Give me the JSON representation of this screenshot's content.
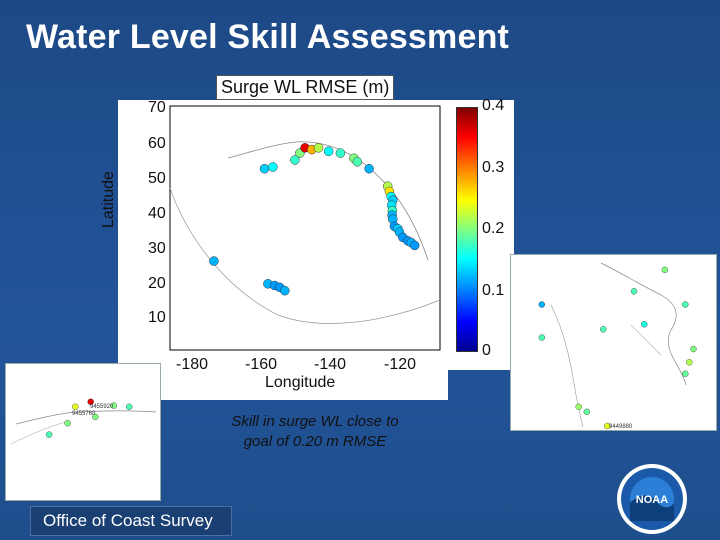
{
  "slide": {
    "title": "Water Level Skill Assessment",
    "caption_line1": "Skill in surge WL close to",
    "caption_line2": "goal of 0.20 m RMSE",
    "footer": "Office of Coast Survey",
    "logo_text": "NOAA"
  },
  "chart_data": [
    {
      "type": "scatter",
      "title": "Surge WL RMSE (m)",
      "xlabel": "Longitude",
      "ylabel": "Latitude",
      "xlim": [
        -190,
        -110
      ],
      "ylim": [
        3,
        73
      ],
      "xticks": [
        -180,
        -160,
        -140,
        -120
      ],
      "yticks": [
        10,
        20,
        30,
        40,
        50,
        60,
        70
      ],
      "colorbar": {
        "range": [
          0,
          0.4
        ],
        "ticks": [
          "0",
          "0.1",
          "0.2",
          "0.3",
          "0.4"
        ],
        "colormap": "jet"
      },
      "grid": false,
      "points": [
        {
          "lon": -177,
          "lat": 28.5,
          "v": 0.12
        },
        {
          "lon": -161,
          "lat": 22,
          "v": 0.12
        },
        {
          "lon": -159,
          "lat": 21.5,
          "v": 0.11
        },
        {
          "lon": -157.5,
          "lat": 21,
          "v": 0.11
        },
        {
          "lon": -156,
          "lat": 20,
          "v": 0.12
        },
        {
          "lon": -162,
          "lat": 55,
          "v": 0.13
        },
        {
          "lon": -159.5,
          "lat": 55.5,
          "v": 0.15
        },
        {
          "lon": -153,
          "lat": 57.5,
          "v": 0.17
        },
        {
          "lon": -151.5,
          "lat": 59.5,
          "v": 0.2
        },
        {
          "lon": -150,
          "lat": 61,
          "v": 0.36
        },
        {
          "lon": -148,
          "lat": 60.5,
          "v": 0.28
        },
        {
          "lon": -146,
          "lat": 61,
          "v": 0.22
        },
        {
          "lon": -143,
          "lat": 60,
          "v": 0.15
        },
        {
          "lon": -139.5,
          "lat": 59.5,
          "v": 0.17
        },
        {
          "lon": -135.5,
          "lat": 58,
          "v": 0.2
        },
        {
          "lon": -134.5,
          "lat": 57,
          "v": 0.18
        },
        {
          "lon": -131,
          "lat": 55,
          "v": 0.12
        },
        {
          "lon": -125.5,
          "lat": 50,
          "v": 0.22
        },
        {
          "lon": -125,
          "lat": 48.5,
          "v": 0.26
        },
        {
          "lon": -124.5,
          "lat": 47,
          "v": 0.15
        },
        {
          "lon": -124,
          "lat": 46,
          "v": 0.13
        },
        {
          "lon": -124.3,
          "lat": 44.5,
          "v": 0.14
        },
        {
          "lon": -124.1,
          "lat": 43,
          "v": 0.17
        },
        {
          "lon": -124.2,
          "lat": 41.7,
          "v": 0.12
        },
        {
          "lon": -124,
          "lat": 40.5,
          "v": 0.12
        },
        {
          "lon": -123.5,
          "lat": 38.5,
          "v": 0.11
        },
        {
          "lon": -122.5,
          "lat": 37.8,
          "v": 0.13
        },
        {
          "lon": -122,
          "lat": 36.8,
          "v": 0.12
        },
        {
          "lon": -121,
          "lat": 35.3,
          "v": 0.11
        },
        {
          "lon": -119.5,
          "lat": 34.3,
          "v": 0.11
        },
        {
          "lon": -118.5,
          "lat": 33.8,
          "v": 0.12
        },
        {
          "lon": -117.5,
          "lat": 33,
          "v": 0.11
        }
      ]
    },
    {
      "type": "scatter",
      "title": "",
      "labels": [
        "9455920",
        "9455760"
      ],
      "points": [
        {
          "x": 0.55,
          "y": 0.3,
          "v": 0.36
        },
        {
          "x": 0.45,
          "y": 0.34,
          "v": 0.24
        },
        {
          "x": 0.7,
          "y": 0.33,
          "v": 0.2
        },
        {
          "x": 0.8,
          "y": 0.34,
          "v": 0.18
        },
        {
          "x": 0.58,
          "y": 0.42,
          "v": 0.2
        },
        {
          "x": 0.4,
          "y": 0.47,
          "v": 0.2
        },
        {
          "x": 0.28,
          "y": 0.56,
          "v": 0.18
        }
      ]
    },
    {
      "type": "scatter",
      "title": "",
      "labels": [
        "9449880"
      ],
      "points": [
        {
          "x": 0.15,
          "y": 0.3,
          "v": 0.12
        },
        {
          "x": 0.15,
          "y": 0.5,
          "v": 0.18
        },
        {
          "x": 0.45,
          "y": 0.45,
          "v": 0.18
        },
        {
          "x": 0.6,
          "y": 0.22,
          "v": 0.18
        },
        {
          "x": 0.75,
          "y": 0.09,
          "v": 0.2
        },
        {
          "x": 0.65,
          "y": 0.42,
          "v": 0.16
        },
        {
          "x": 0.85,
          "y": 0.3,
          "v": 0.18
        },
        {
          "x": 0.87,
          "y": 0.65,
          "v": 0.22
        },
        {
          "x": 0.89,
          "y": 0.57,
          "v": 0.2
        },
        {
          "x": 0.85,
          "y": 0.72,
          "v": 0.19
        },
        {
          "x": 0.33,
          "y": 0.92,
          "v": 0.21
        },
        {
          "x": 0.37,
          "y": 0.95,
          "v": 0.19
        },
        {
          "x": 0.47,
          "y": 1.08,
          "v": 0.24
        }
      ]
    }
  ]
}
